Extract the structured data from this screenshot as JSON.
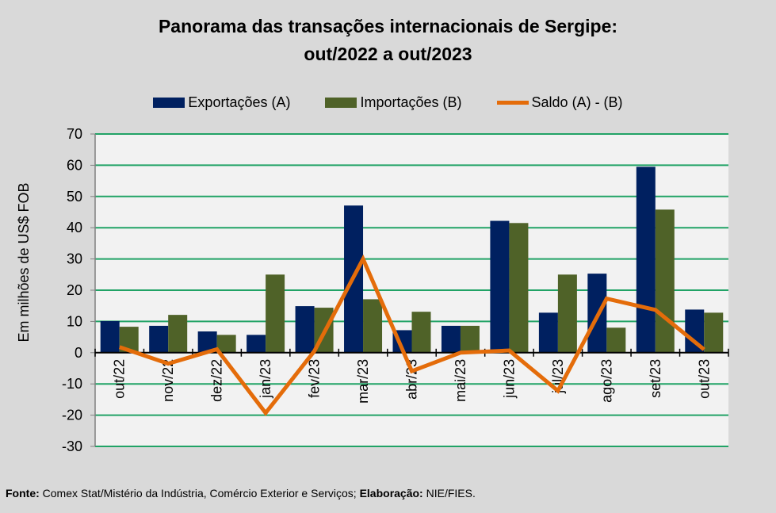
{
  "chart_data": {
    "type": "bar",
    "title_line1": "Panorama  das transações internacionais de Sergipe:",
    "title_line2": "out/2022 a out/2023",
    "ylabel": "Em milhões de US$ FOB",
    "ylim": [
      -30,
      70
    ],
    "yticks": [
      70,
      60,
      50,
      40,
      30,
      20,
      10,
      0,
      -10,
      -20,
      -30
    ],
    "grid": true,
    "legend_position": "top",
    "categories": [
      "out/22",
      "nov/22",
      "dez/22",
      "jan/23",
      "fev/23",
      "mar/23",
      "abr/23",
      "mai/23",
      "jun/23",
      "jul/23",
      "ago/23",
      "set/23",
      "out/23"
    ],
    "series": [
      {
        "name": "Exportações (A)",
        "type": "bar",
        "color": "#002060",
        "values": [
          10.1,
          8.6,
          6.8,
          5.7,
          14.9,
          47.1,
          7.2,
          8.6,
          42.2,
          12.8,
          25.3,
          59.5,
          13.8
        ]
      },
      {
        "name": "Importações (B)",
        "type": "bar",
        "color": "#4f6228",
        "values": [
          8.3,
          12.1,
          5.7,
          25.0,
          14.4,
          17.1,
          13.1,
          8.6,
          41.5,
          25.0,
          8.0,
          45.8,
          12.8
        ]
      },
      {
        "name": "Saldo (A) - (B)",
        "type": "line",
        "color": "#e46c0a",
        "values": [
          1.8,
          -3.5,
          1.1,
          -19.3,
          0.5,
          30.0,
          -5.9,
          0.0,
          0.7,
          -12.2,
          17.3,
          13.7,
          1.0
        ]
      }
    ]
  },
  "footer": {
    "source_label": "Fonte:",
    "source_text": " Comex Stat/Mistério da Indústria, Comércio Exterior e Serviços; ",
    "elab_label": "Elaboração:",
    "elab_text": " NIE/FIES."
  }
}
